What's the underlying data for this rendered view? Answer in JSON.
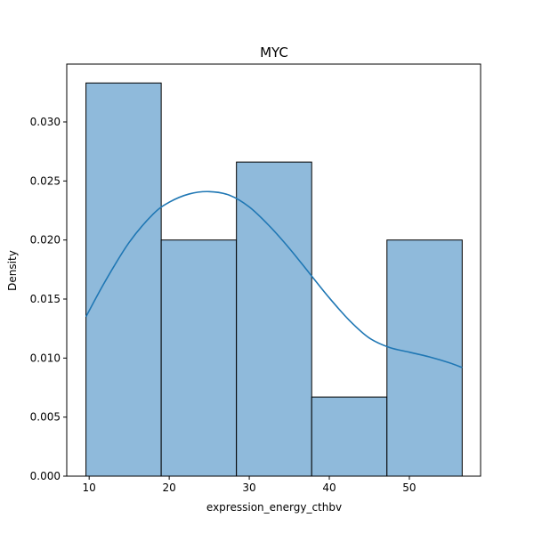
{
  "chart_data": {
    "type": "histogram",
    "title": "MYC",
    "xlabel": "expression_energy_cthbv",
    "ylabel": "Density",
    "xlim": [
      7.2,
      58.9
    ],
    "ylim": [
      0,
      0.0349
    ],
    "xticks": [
      10,
      20,
      30,
      40,
      50
    ],
    "yticks": [
      0.0,
      0.005,
      0.01,
      0.015,
      0.02,
      0.025,
      0.03
    ],
    "ytick_labels": [
      "0.000",
      "0.005",
      "0.010",
      "0.015",
      "0.020",
      "0.025",
      "0.030"
    ],
    "bins": [
      {
        "x0": 9.6,
        "x1": 19.0,
        "density": 0.0333
      },
      {
        "x0": 19.0,
        "x1": 28.4,
        "density": 0.02
      },
      {
        "x0": 28.4,
        "x1": 37.8,
        "density": 0.0266
      },
      {
        "x0": 37.8,
        "x1": 47.2,
        "density": 0.0067
      },
      {
        "x0": 47.2,
        "x1": 56.6,
        "density": 0.02
      }
    ],
    "kde": {
      "x": [
        9.6,
        12.0,
        15.0,
        18.0,
        20.0,
        22.5,
        25.0,
        27.5,
        30.0,
        32.5,
        35.0,
        37.5,
        40.0,
        42.5,
        45.0,
        47.5,
        50.0,
        52.5,
        55.0,
        56.6
      ],
      "y": [
        0.0135,
        0.0165,
        0.0198,
        0.0222,
        0.0232,
        0.0239,
        0.0241,
        0.0238,
        0.0228,
        0.0212,
        0.0193,
        0.0172,
        0.0151,
        0.0132,
        0.0117,
        0.0109,
        0.0105,
        0.0101,
        0.0096,
        0.0092
      ]
    },
    "colors": {
      "bar_fill": "#8fbadb",
      "bar_edge": "#000000",
      "kde_line": "#1f77b4"
    },
    "grid": false,
    "legend": "none"
  }
}
